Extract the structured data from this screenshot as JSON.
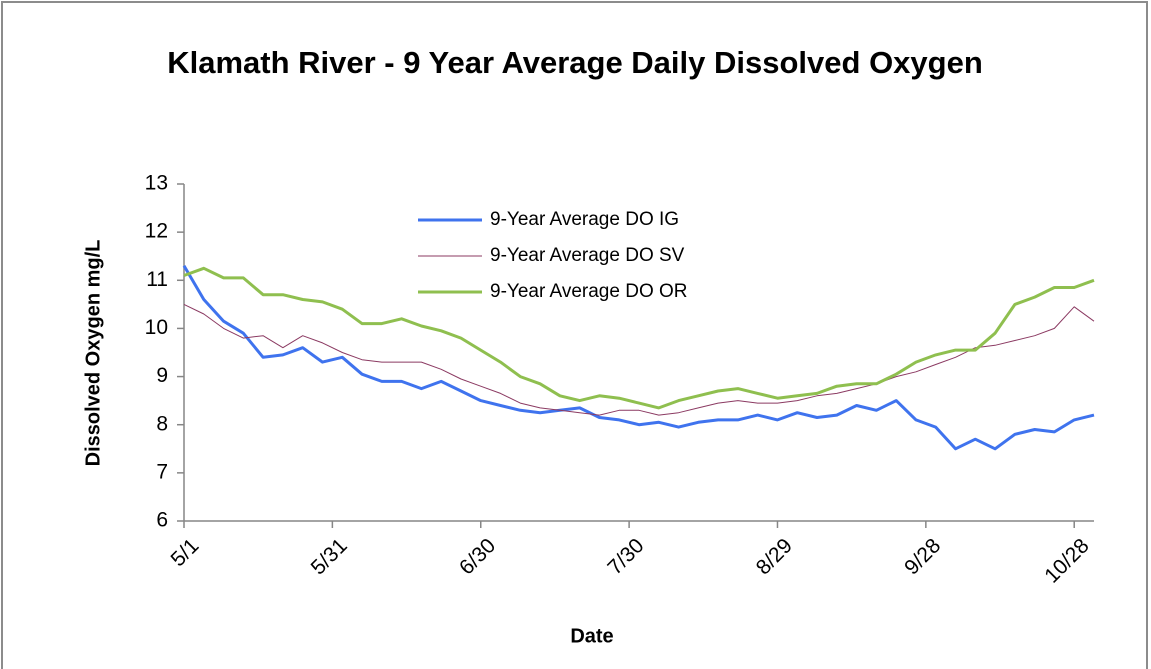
{
  "chart_data": {
    "type": "line",
    "title": "Klamath River - 9 Year Average Daily Dissolved Oxygen",
    "x_label": "Date",
    "y_label": "Dissolved Oxygen mg/L",
    "x": [
      0,
      4,
      8,
      12,
      16,
      20,
      24,
      28,
      32,
      36,
      40,
      44,
      48,
      52,
      56,
      60,
      64,
      68,
      72,
      76,
      80,
      84,
      88,
      92,
      96,
      100,
      104,
      108,
      112,
      116,
      120,
      124,
      128,
      132,
      136,
      140,
      144,
      148,
      152,
      156,
      160,
      164,
      168,
      172,
      176,
      180,
      184
    ],
    "xlim": [
      0,
      184
    ],
    "xticks": [
      {
        "value": 0,
        "label": "5/1"
      },
      {
        "value": 30,
        "label": "5/31"
      },
      {
        "value": 60,
        "label": "6/30"
      },
      {
        "value": 90,
        "label": "7/30"
      },
      {
        "value": 120,
        "label": "8/29"
      },
      {
        "value": 150,
        "label": "9/28"
      },
      {
        "value": 180,
        "label": "10/28"
      }
    ],
    "ylim": [
      6,
      13
    ],
    "yticks": [
      6,
      7,
      8,
      9,
      10,
      11,
      12,
      13
    ],
    "legend": "top-center",
    "series": [
      {
        "name": "9-Year Average DO IG",
        "color": "#3f73ee",
        "width": 3,
        "values": [
          11.3,
          10.6,
          10.15,
          9.9,
          9.4,
          9.45,
          9.6,
          9.3,
          9.4,
          9.05,
          8.9,
          8.9,
          8.75,
          8.9,
          8.7,
          8.5,
          8.4,
          8.3,
          8.25,
          8.3,
          8.35,
          8.15,
          8.1,
          8.0,
          8.05,
          7.95,
          8.05,
          8.1,
          8.1,
          8.2,
          8.1,
          8.25,
          8.15,
          8.2,
          8.4,
          8.3,
          8.5,
          8.1,
          7.95,
          7.5,
          7.7,
          7.5,
          7.8,
          7.9,
          7.85,
          8.1,
          8.2
        ]
      },
      {
        "name": "9-Year Average DO SV",
        "color": "#8b3a62",
        "width": 1,
        "values": [
          10.5,
          10.3,
          10.0,
          9.8,
          9.85,
          9.6,
          9.85,
          9.7,
          9.5,
          9.35,
          9.3,
          9.3,
          9.3,
          9.15,
          8.95,
          8.8,
          8.65,
          8.45,
          8.35,
          8.3,
          8.25,
          8.2,
          8.3,
          8.3,
          8.2,
          8.25,
          8.35,
          8.45,
          8.5,
          8.45,
          8.45,
          8.5,
          8.6,
          8.65,
          8.75,
          8.85,
          9.0,
          9.1,
          9.25,
          9.4,
          9.6,
          9.65,
          9.75,
          9.85,
          10.0,
          10.45,
          10.15
        ]
      },
      {
        "name": "9-Year Average DO OR",
        "color": "#8fbf4f",
        "width": 3,
        "values": [
          11.1,
          11.25,
          11.05,
          11.05,
          10.7,
          10.7,
          10.6,
          10.55,
          10.4,
          10.1,
          10.1,
          10.2,
          10.05,
          9.95,
          9.8,
          9.55,
          9.3,
          9.0,
          8.85,
          8.6,
          8.5,
          8.6,
          8.55,
          8.45,
          8.35,
          8.5,
          8.6,
          8.7,
          8.75,
          8.65,
          8.55,
          8.6,
          8.65,
          8.8,
          8.85,
          8.85,
          9.05,
          9.3,
          9.45,
          9.55,
          9.55,
          9.9,
          10.5,
          10.65,
          10.85,
          10.85,
          11.0
        ]
      }
    ]
  }
}
